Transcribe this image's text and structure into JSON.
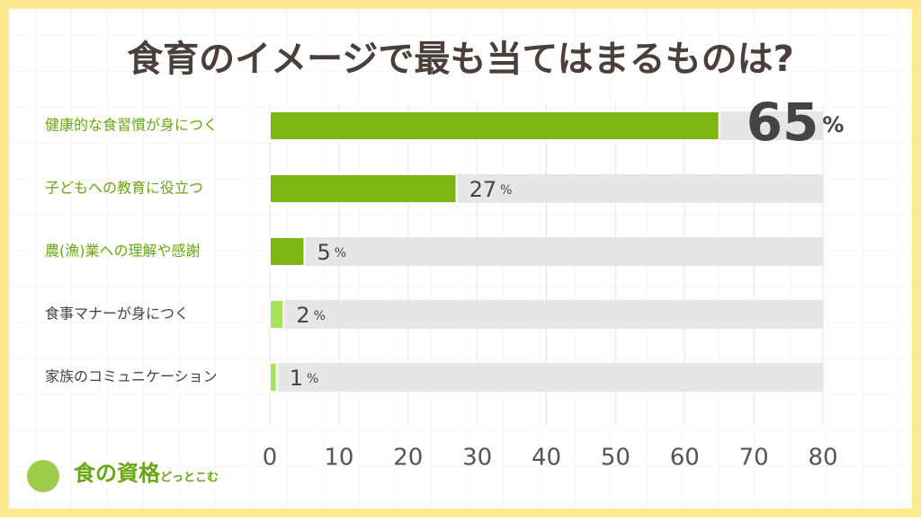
{
  "chart_data": {
    "type": "bar",
    "orientation": "horizontal",
    "title": "食育のイメージで最も当てはまるものは?",
    "categories": [
      "健康的な食習慣が身につく",
      "子どもへの教育に役立つ",
      "農(漁)業への理解や感謝",
      "食事マナーが身につく",
      "家族のコミュニケーション"
    ],
    "values": [
      65,
      27,
      5,
      2,
      1
    ],
    "value_labels": [
      "65%",
      "27%",
      "5%",
      "2%",
      "1%"
    ],
    "colors": [
      "#7db614",
      "#7db614",
      "#7db614",
      "#a6e35a",
      "#a6e35a"
    ],
    "label_colors": [
      "#6aa512",
      "#6aa512",
      "#6aa512",
      "#444444",
      "#444444"
    ],
    "track_color": "#e6e6e6",
    "xlim": [
      0,
      80
    ],
    "xticks": [
      0,
      10,
      20,
      30,
      40,
      50,
      60,
      70,
      80
    ],
    "grid": true
  },
  "logo": {
    "main": "食の資格",
    "sub": "どっとこむ"
  }
}
